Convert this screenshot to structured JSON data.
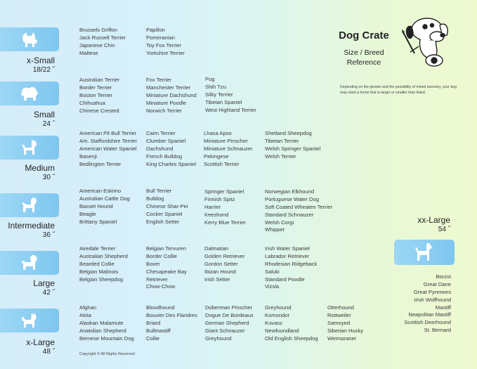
{
  "header": {
    "title": "Dog Crate",
    "subtitle_line1": "Size / Breed",
    "subtitle_line2": "Reference",
    "note": "Depending on the gender and the possibility of mixed ancestry, your dog may need  a home that is larger or smaller than listed."
  },
  "sizes": [
    {
      "label": "x-Small",
      "number": "18/22 ˝",
      "icon": "small-dog-icon",
      "columns": [
        [
          "Brussels Griffon",
          "Jack Russell Terrier",
          "Japanese Chin",
          "Maltese"
        ],
        [
          "Papillon",
          "Pomeranian",
          "Toy Fox Terrier",
          "Yorkshire Terrier"
        ]
      ]
    },
    {
      "label": "Small",
      "number": "24 ˝",
      "icon": "fluffy-dog-icon",
      "columns": [
        [
          "Australian Terrier",
          "Border Terrier",
          "Boston Terrier",
          "Chihuahua",
          "Chinese Crested"
        ],
        [
          "Fox Terrier",
          "Manchester Terrier",
          "Miniature Dachshund",
          "Miniature Poodle",
          "Norwich Terrier"
        ],
        [
          "Pug",
          "Shih Tzu",
          "Silky Terrier",
          "Tibetan Spaniel",
          "West Highland Terrier"
        ]
      ]
    },
    {
      "label": "Medium",
      "number": "30 ˝",
      "icon": "terrier-dog-icon",
      "columns": [
        [
          "American Pit Bull Terrier",
          "Am. Staffordshire Terrier",
          "American Water Spaniel",
          "Basenji",
          "Bedlington Terrier"
        ],
        [
          "Cairn Terrier",
          "Clumber Spaniel",
          "Dachshund",
          "French Bulldog",
          "King Charles Spaniel"
        ],
        [
          "Lhasa Apso",
          "Miniature Pinscher",
          "Miniature Schnauzer",
          "Pekingese",
          "Scottish Terrier"
        ],
        [
          "Shetland Sheepdog",
          "Tibetan Terrier",
          "Welsh Springer Spaniel",
          "Welsh Terrier"
        ]
      ]
    },
    {
      "label": "Intermediate",
      "number": "36 ˝",
      "icon": "spaniel-dog-icon",
      "columns": [
        [
          "American Eskimo",
          "Australian Cattle Dog",
          "Basset Hound",
          "Beagle",
          "Brittany Spaniel"
        ],
        [
          "Bull Terrier",
          "Bulldog",
          "Chinese Shar-Pei",
          "Cocker Spaniel",
          "English Setter"
        ],
        [
          "Springer Spaniel",
          "Finnish Spitz",
          "Harrier",
          "Keeshond",
          "Kerry Blue Terrier"
        ],
        [
          "Norwegian Elkhound",
          "Portuguese Water Dog",
          "Soft Coated Wheaten Terrier",
          "Standard Schnauzer",
          "Welsh Corgi",
          "Whippet"
        ]
      ]
    },
    {
      "label": "Large",
      "number": "42 ˝",
      "icon": "retriever-dog-icon",
      "columns": [
        [
          "Airedale Terrier",
          "Australian Shepherd",
          "Bearded Collie",
          "Belgian Malinois",
          "Belgian Sheepdog"
        ],
        [
          "Belgian Tervuren",
          "Border Collie",
          "Boxer",
          "Chesapeake Bay",
          "Retriever",
          "Chow-Chow"
        ],
        [
          "Dalmatian",
          "Golden Retriever",
          "Gordon Setter",
          "Ibizan Hound",
          "Irish Setter"
        ],
        [
          "Irish Water Spaniel",
          "Labrador Retriever",
          "Rhodesian Ridgeback",
          "Saluki",
          "Standard Poodle",
          "Vizsla"
        ]
      ]
    },
    {
      "label": "x-Large",
      "number": "48 ˝",
      "icon": "akita-dog-icon",
      "columns": [
        [
          "Afghan",
          "Akita",
          "Alaskan Malamute",
          "Anatolian Shepherd",
          "Bernese Mountain Dog"
        ],
        [
          "Bloodhound",
          "Bouvier Des Flandres",
          "Briard",
          "Bullmastiff",
          "Collie"
        ],
        [
          "Doberman Pinscher",
          "Dogue De Bordeaux",
          "German Shepherd",
          "Giant Schnauzer",
          "Greyhound"
        ],
        [
          "Greyhound",
          "Komondor",
          "Kuvasz",
          "Newfoundland",
          "Old English Sheepdog"
        ],
        [
          "Otterhound",
          "Rottweiler",
          "Samoyed",
          "Siberian Husky",
          "Weimaraner"
        ]
      ]
    }
  ],
  "xxlarge": {
    "label": "xx-Large",
    "number": "54 ˝",
    "icon": "great-dane-icon",
    "breeds": [
      "Borzoi",
      "Great Dane",
      "Great Pyrenees",
      "Irish Wolfhound",
      "Mastiff",
      "Neapolitan Mastiff",
      "Scottish Deerhound",
      "St. Bernard"
    ]
  },
  "footer": {
    "copyright": "Copyright © All Rights Reserved"
  }
}
